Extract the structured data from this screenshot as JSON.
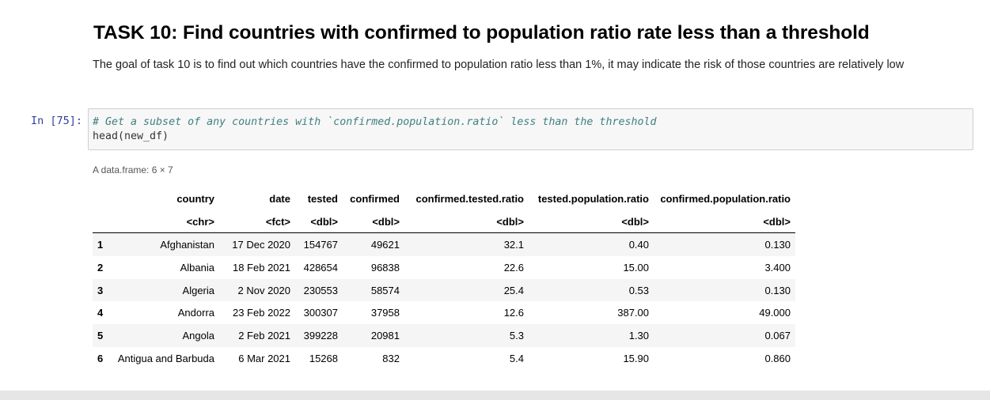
{
  "markdown": {
    "title": "TASK 10: Find countries with confirmed to population ratio rate less than a threshold",
    "description": "The goal of task 10 is to find out which countries have the confirmed to population ratio less than 1%, it may indicate the risk of those countries are relatively low"
  },
  "code_cell": {
    "prompt": "In [75]:",
    "comment": "# Get a subset of any countries with `confirmed.population.ratio` less than the threshold",
    "code": "head(new_df)"
  },
  "output": {
    "caption": "A data.frame: 6 × 7",
    "columns": [
      "",
      "country",
      "date",
      "tested",
      "confirmed",
      "confirmed.tested.ratio",
      "tested.population.ratio",
      "confirmed.population.ratio"
    ],
    "types": [
      "",
      "<chr>",
      "<fct>",
      "<dbl>",
      "<dbl>",
      "<dbl>",
      "<dbl>",
      "<dbl>"
    ],
    "rows": [
      [
        "1",
        "Afghanistan",
        "17 Dec 2020",
        "154767",
        "49621",
        "32.1",
        "0.40",
        "0.130"
      ],
      [
        "2",
        "Albania",
        "18 Feb 2021",
        "428654",
        "96838",
        "22.6",
        "15.00",
        "3.400"
      ],
      [
        "3",
        "Algeria",
        "2 Nov 2020",
        "230553",
        "58574",
        "25.4",
        "0.53",
        "0.130"
      ],
      [
        "4",
        "Andorra",
        "23 Feb 2022",
        "300307",
        "37958",
        "12.6",
        "387.00",
        "49.000"
      ],
      [
        "5",
        "Angola",
        "2 Feb 2021",
        "399228",
        "20981",
        "5.3",
        "1.30",
        "0.067"
      ],
      [
        "6",
        "Antigua and Barbuda",
        "6 Mar 2021",
        "15268",
        "832",
        "5.4",
        "15.90",
        "0.860"
      ]
    ]
  }
}
